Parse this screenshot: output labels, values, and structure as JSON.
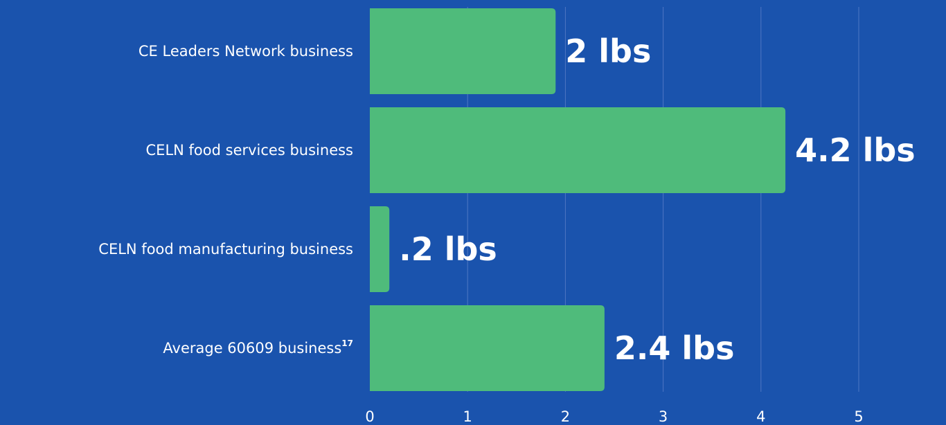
{
  "colors": {
    "background": "#1a53ad",
    "bar": "#4fbb7b",
    "text": "#ffffff",
    "grid": "#4f77c3"
  },
  "chart_data": {
    "type": "bar",
    "orientation": "horizontal",
    "categories": [
      "CE Leaders Network business",
      "CELN food services business",
      "CELN food manufacturing business",
      "Average 60609 business"
    ],
    "category_superscripts": [
      "",
      "",
      "",
      "17"
    ],
    "values": [
      1.9,
      4.25,
      0.2,
      2.4
    ],
    "data_labels": [
      "2 lbs",
      "4.2 lbs",
      ".2 lbs",
      "2.4 lbs"
    ],
    "xlim": [
      0,
      5
    ],
    "x_ticks": [
      "0",
      "1",
      "2",
      "3",
      "4",
      "5"
    ],
    "grid": "vertical",
    "legend": "none"
  }
}
